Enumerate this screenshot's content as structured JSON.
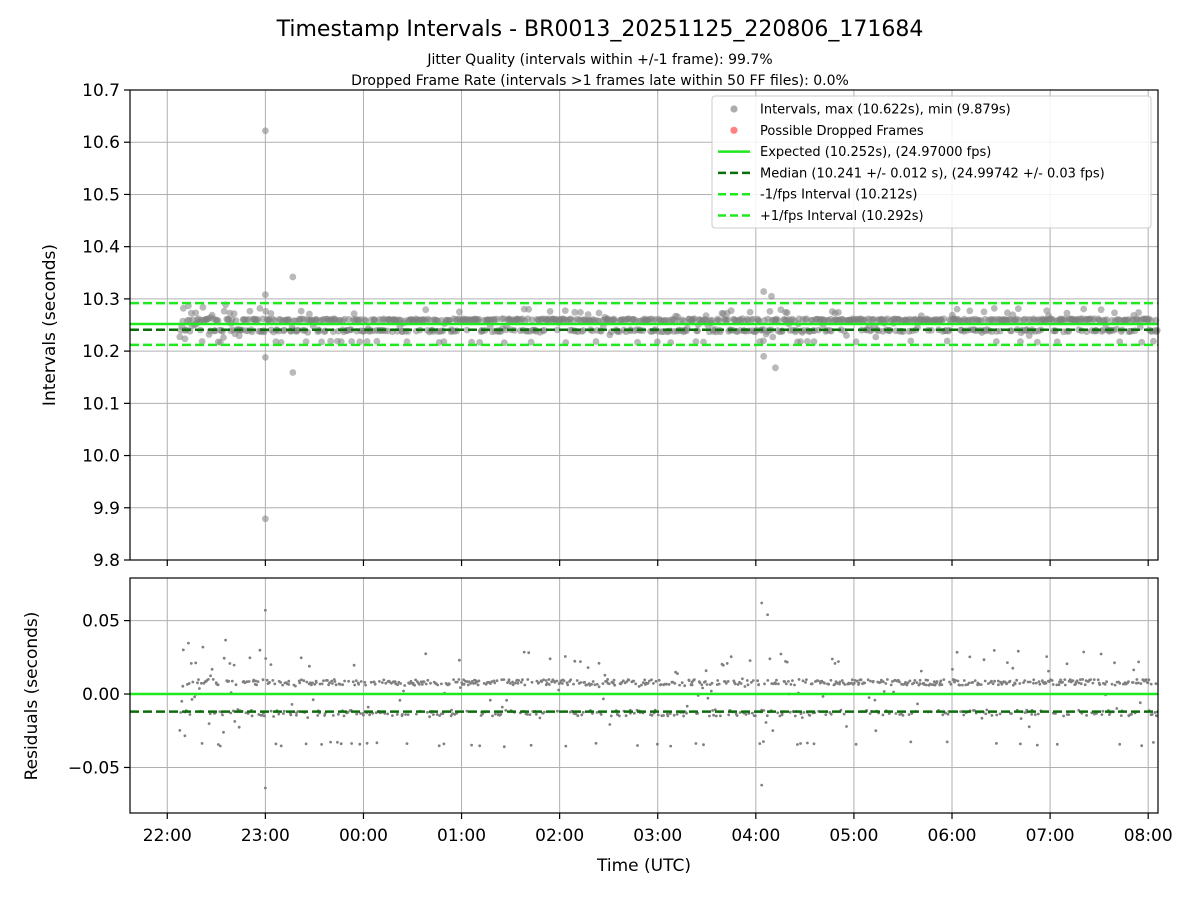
{
  "chart_data": [
    {
      "panel": "intervals",
      "type": "scatter",
      "title": "Timestamp Intervals - BR0013_20251125_220806_171684",
      "subtitle_1": "Jitter Quality (intervals within +/-1 frame): 99.7%",
      "subtitle_2": "Dropped Frame Rate (intervals >1 frames late within 50 FF files): 0.0%",
      "ylabel": "Intervals (seconds)",
      "xlim": [
        21.62,
        32.1
      ],
      "ylim": [
        9.8,
        10.7
      ],
      "y_ticks": [
        9.8,
        9.9,
        10.0,
        10.1,
        10.2,
        10.3,
        10.4,
        10.5,
        10.6,
        10.7
      ],
      "y_tick_labels": [
        "9.8",
        "9.9",
        "10.0",
        "10.1",
        "10.2",
        "10.3",
        "10.4",
        "10.5",
        "10.6",
        "10.7"
      ],
      "grid": true,
      "legend_position": "top-right",
      "expected": 10.252,
      "median": 10.241,
      "minus_interval": 10.212,
      "plus_interval": 10.292,
      "outliers": [
        {
          "x": 23.0,
          "y": 10.622
        },
        {
          "x": 23.0,
          "y": 10.308
        },
        {
          "x": 23.0,
          "y": 10.188
        },
        {
          "x": 23.0,
          "y": 9.879
        },
        {
          "x": 23.28,
          "y": 10.342
        },
        {
          "x": 23.28,
          "y": 10.159
        },
        {
          "x": 28.08,
          "y": 10.314
        },
        {
          "x": 28.16,
          "y": 10.305
        },
        {
          "x": 28.08,
          "y": 10.19
        },
        {
          "x": 28.2,
          "y": 10.168
        }
      ],
      "legend": [
        {
          "label": "Intervals, max (10.622s), min (9.879s)",
          "style": "marker",
          "color": "#9e9e9e"
        },
        {
          "label": "Possible Dropped Frames",
          "style": "marker",
          "color": "#ff6b6b"
        },
        {
          "label": "Expected (10.252s), (24.97000 fps)",
          "style": "solid",
          "color": "#1ee81e"
        },
        {
          "label": "Median (10.241 +/- 0.012 s), (24.99742 +/- 0.03 fps)",
          "style": "dashed",
          "color": "#0a6e0a"
        },
        {
          "label": "-1/fps Interval (10.212s)",
          "style": "dashed",
          "color": "#1ee81e"
        },
        {
          "label": "+1/fps Interval (10.292s)",
          "style": "dashed",
          "color": "#1ee81e"
        }
      ]
    },
    {
      "panel": "residuals",
      "type": "scatter",
      "xlabel": "Time (UTC)",
      "ylabel": "Residuals (seconds)",
      "xlim": [
        21.62,
        32.1
      ],
      "ylim": [
        -0.081,
        0.079
      ],
      "y_ticks": [
        -0.05,
        0.0,
        0.05
      ],
      "y_tick_labels": [
        "−0.05",
        "0.00",
        "0.05"
      ],
      "x_ticks": [
        22,
        23,
        24,
        25,
        26,
        27,
        28,
        29,
        30,
        31,
        32
      ],
      "x_tick_labels": [
        "22:00",
        "23:00",
        "00:00",
        "01:00",
        "02:00",
        "03:00",
        "04:00",
        "05:00",
        "06:00",
        "07:00",
        "08:00"
      ],
      "grid": true,
      "zero_line": 0.0,
      "median_residual": -0.012,
      "upper_band": 0.008,
      "lower_band": -0.013,
      "outliers": [
        {
          "x": 23.0,
          "y": 0.057
        },
        {
          "x": 23.0,
          "y": -0.064
        },
        {
          "x": 28.06,
          "y": 0.062
        },
        {
          "x": 28.12,
          "y": 0.054
        },
        {
          "x": 28.06,
          "y": -0.062
        }
      ]
    }
  ],
  "colors": {
    "points": "#808080",
    "points_light": "#a8a8a8",
    "expected": "#1ee81e",
    "median": "#0a6e0a",
    "grid": "#b0b0b0",
    "axes": "#000000"
  }
}
